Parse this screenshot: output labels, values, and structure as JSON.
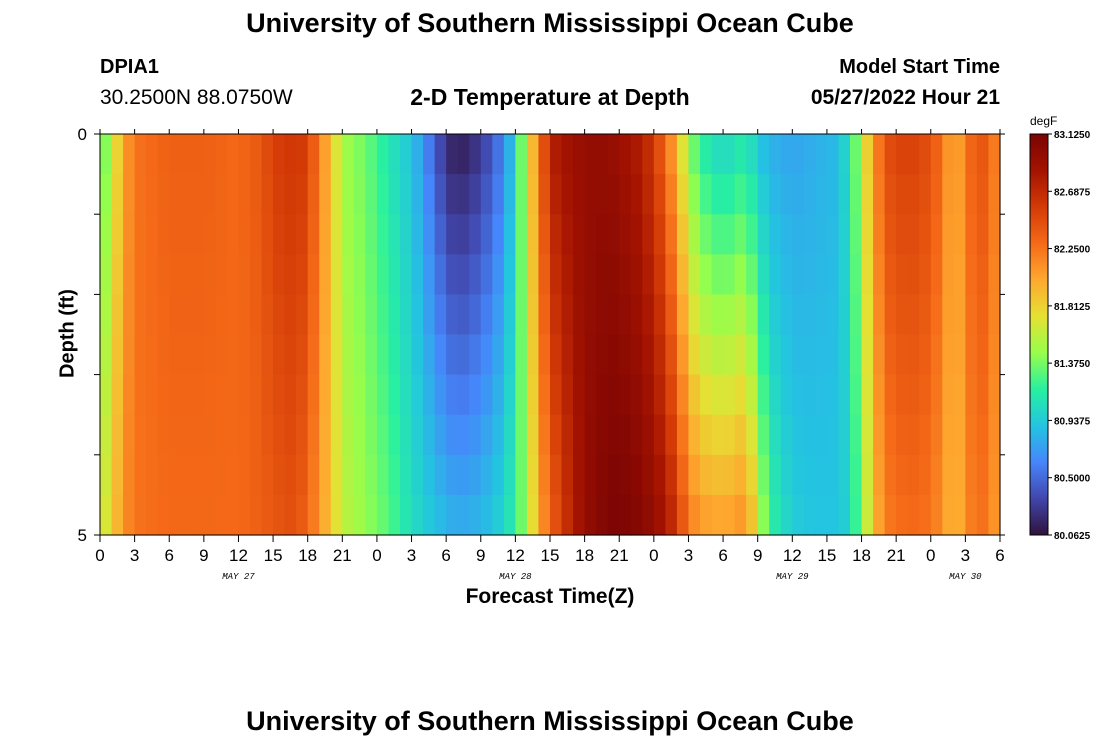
{
  "page": {
    "title": "University of Southern Mississippi Ocean Cube",
    "footer_title": "University of Southern Mississippi Ocean Cube",
    "station": "DPIA1",
    "coords": "30.2500N  88.0750W",
    "subtitle": "2-D Temperature at Depth",
    "start_label": "Model Start Time",
    "start_value": "05/27/2022 Hour 21"
  },
  "chart_data": {
    "type": "heatmap",
    "title": "2-D Temperature at Depth",
    "xlabel": "Forecast Time(Z)",
    "ylabel": "Depth (ft)",
    "units": "degF",
    "x_tick_labels": [
      "0",
      "3",
      "6",
      "9",
      "12",
      "15",
      "18",
      "21",
      "0",
      "3",
      "6",
      "9",
      "12",
      "15",
      "18",
      "21",
      "0",
      "3",
      "6",
      "9",
      "12",
      "15",
      "18",
      "21",
      "0",
      "3",
      "6"
    ],
    "day_labels": [
      {
        "label": "MAY 27",
        "hour": 12
      },
      {
        "label": "MAY 28",
        "hour": 36
      },
      {
        "label": "MAY 29",
        "hour": 60
      },
      {
        "label": "MAY 30",
        "hour": 75
      }
    ],
    "x_range_hours": [
      0,
      78
    ],
    "y_tick_labels": [
      "0",
      "5"
    ],
    "y_range_ft": [
      0,
      5
    ],
    "depth_levels": [
      0,
      0.5,
      1,
      1.5,
      2,
      2.5,
      3,
      3.5,
      4,
      4.5,
      5
    ],
    "colorbar": {
      "label": "degF",
      "tick_labels": [
        "83.1250",
        "82.6875",
        "82.2500",
        "81.8125",
        "81.3750",
        "80.9375",
        "80.5000",
        "80.0625"
      ],
      "min": 80.0625,
      "max": 83.125,
      "colors": [
        "#30123b",
        "#4146ac",
        "#4686fb",
        "#23c5e0",
        "#28f0a0",
        "#97fe4a",
        "#e5e134",
        "#fea82f",
        "#f56a18",
        "#d33a06",
        "#a41301",
        "#7a0403"
      ]
    },
    "time_points": [
      {
        "hour": 0,
        "top": 81.2,
        "bottom": 81.6
      },
      {
        "hour": 1,
        "top": 81.6,
        "bottom": 81.8
      },
      {
        "hour": 2,
        "top": 82.0,
        "bottom": 82.1
      },
      {
        "hour": 3,
        "top": 82.25,
        "bottom": 82.25
      },
      {
        "hour": 6,
        "top": 82.35,
        "bottom": 82.3
      },
      {
        "hour": 9,
        "top": 82.35,
        "bottom": 82.3
      },
      {
        "hour": 12,
        "top": 82.3,
        "bottom": 82.3
      },
      {
        "hour": 14,
        "top": 82.4,
        "bottom": 82.35
      },
      {
        "hour": 15,
        "top": 82.55,
        "bottom": 82.4
      },
      {
        "hour": 17,
        "top": 82.6,
        "bottom": 82.45
      },
      {
        "hour": 18,
        "top": 82.55,
        "bottom": 82.3
      },
      {
        "hour": 19,
        "top": 82.2,
        "bottom": 82.1
      },
      {
        "hour": 20,
        "top": 81.9,
        "bottom": 81.85
      },
      {
        "hour": 21,
        "top": 81.5,
        "bottom": 81.6
      },
      {
        "hour": 23,
        "top": 81.35,
        "bottom": 81.45
      },
      {
        "hour": 25,
        "top": 81.1,
        "bottom": 81.3
      },
      {
        "hour": 27,
        "top": 80.9,
        "bottom": 81.05
      },
      {
        "hour": 29,
        "top": 80.45,
        "bottom": 80.9
      },
      {
        "hour": 30,
        "top": 80.2,
        "bottom": 80.85
      },
      {
        "hour": 31,
        "top": 80.1,
        "bottom": 80.8
      },
      {
        "hour": 33,
        "top": 80.25,
        "bottom": 80.85
      },
      {
        "hour": 35,
        "top": 80.6,
        "bottom": 81.0
      },
      {
        "hour": 36,
        "top": 81.0,
        "bottom": 81.2
      },
      {
        "hour": 37,
        "top": 81.7,
        "bottom": 81.5
      },
      {
        "hour": 38,
        "top": 82.2,
        "bottom": 82.0
      },
      {
        "hour": 39,
        "top": 82.75,
        "bottom": 82.3
      },
      {
        "hour": 40,
        "top": 82.85,
        "bottom": 82.55
      },
      {
        "hour": 42,
        "top": 82.95,
        "bottom": 82.95
      },
      {
        "hour": 44,
        "top": 82.95,
        "bottom": 83.1
      },
      {
        "hour": 45,
        "top": 82.9,
        "bottom": 83.12
      },
      {
        "hour": 47,
        "top": 82.75,
        "bottom": 83.05
      },
      {
        "hour": 48,
        "top": 82.55,
        "bottom": 82.95
      },
      {
        "hour": 49,
        "top": 82.3,
        "bottom": 82.85
      },
      {
        "hour": 50,
        "top": 81.9,
        "bottom": 82.6
      },
      {
        "hour": 51,
        "top": 81.45,
        "bottom": 82.25
      },
      {
        "hour": 52,
        "top": 81.15,
        "bottom": 82.1
      },
      {
        "hour": 54,
        "top": 80.95,
        "bottom": 82.05
      },
      {
        "hour": 55,
        "top": 81.05,
        "bottom": 82.1
      },
      {
        "hour": 56,
        "top": 81.1,
        "bottom": 82.15
      },
      {
        "hour": 57,
        "top": 80.9,
        "bottom": 81.7
      },
      {
        "hour": 58,
        "top": 80.8,
        "bottom": 81.2
      },
      {
        "hour": 60,
        "top": 80.75,
        "bottom": 80.95
      },
      {
        "hour": 62,
        "top": 80.8,
        "bottom": 80.9
      },
      {
        "hour": 64,
        "top": 80.85,
        "bottom": 80.9
      },
      {
        "hour": 65,
        "top": 81.1,
        "bottom": 81.0
      },
      {
        "hour": 66,
        "top": 81.6,
        "bottom": 81.4
      },
      {
        "hour": 67,
        "top": 82.05,
        "bottom": 81.85
      },
      {
        "hour": 68,
        "top": 82.45,
        "bottom": 82.2
      },
      {
        "hour": 70,
        "top": 82.55,
        "bottom": 82.3
      },
      {
        "hour": 72,
        "top": 82.45,
        "bottom": 82.25
      },
      {
        "hour": 73,
        "top": 82.25,
        "bottom": 82.1
      },
      {
        "hour": 74,
        "top": 81.95,
        "bottom": 81.9
      },
      {
        "hour": 75,
        "top": 82.2,
        "bottom": 82.1
      },
      {
        "hour": 76,
        "top": 82.45,
        "bottom": 82.3
      },
      {
        "hour": 77,
        "top": 82.35,
        "bottom": 82.2
      },
      {
        "hour": 78,
        "top": 82.1,
        "bottom": 82.0
      }
    ]
  }
}
